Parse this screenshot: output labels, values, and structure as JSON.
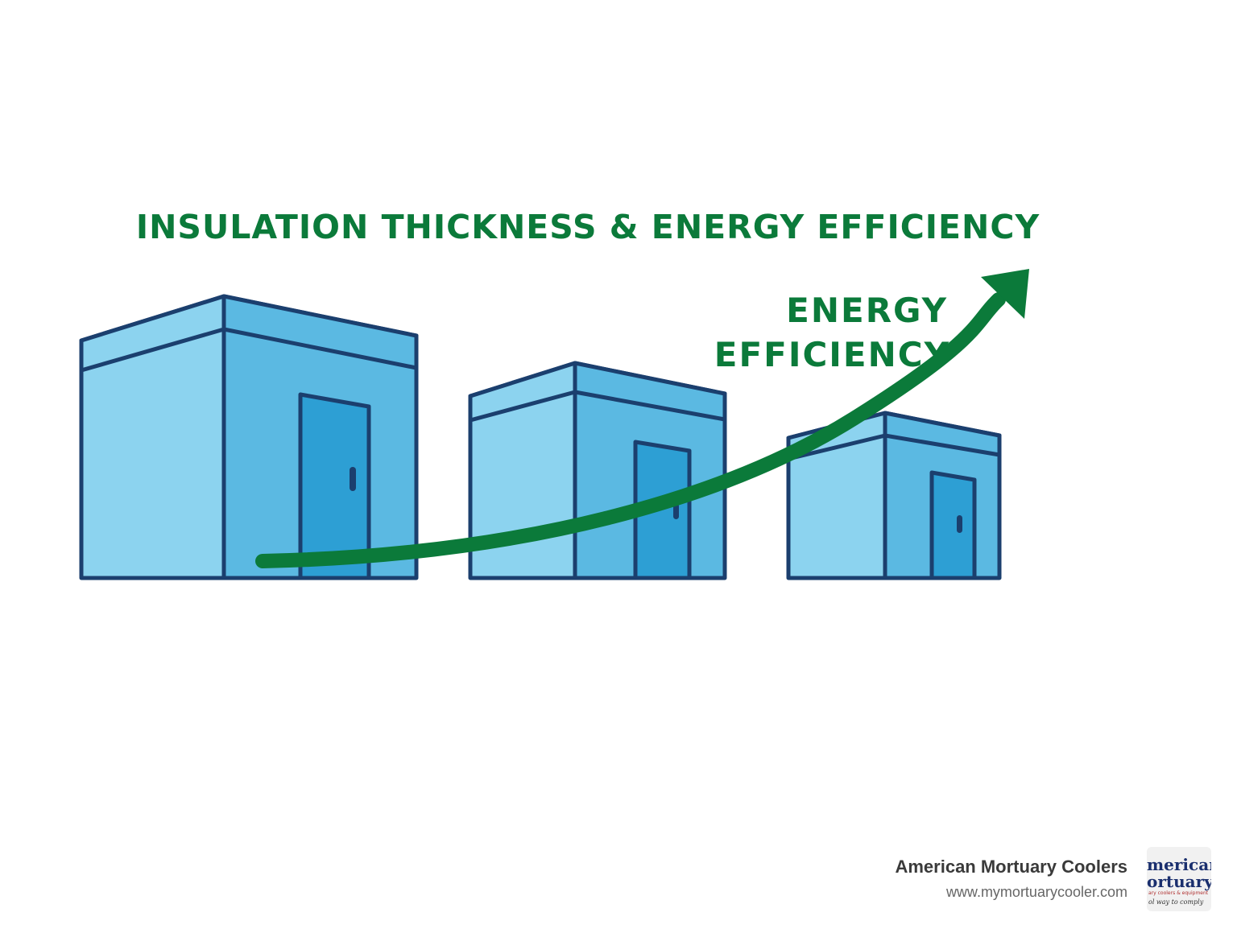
{
  "title": "INSULATION THICKNESS & ENERGY EFFICIENCY",
  "arrow_label": {
    "line1": "ENERGY",
    "line2": "EFFICIENCY"
  },
  "colors": {
    "green": "#0b7a3a",
    "outline": "#1b3f6e",
    "wall_light": "#8cd3ef",
    "wall_mid": "#5bb9e2",
    "door": "#2d9fd4"
  },
  "branding": {
    "name": "American Mortuary Coolers",
    "url": "www.mymortuarycooler.com",
    "logo_line1": "merican",
    "logo_line2": "ortuary",
    "logo_line3": "ary coolers & equipment",
    "logo_line4": "ol way to comply"
  }
}
